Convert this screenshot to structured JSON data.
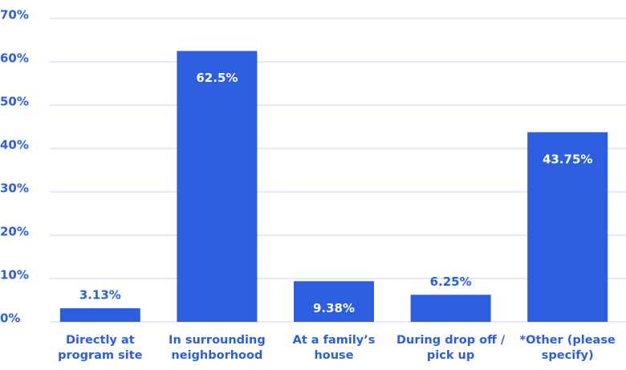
{
  "chart_data": {
    "type": "bar",
    "categories": [
      "Directly at program site",
      "In surrounding neighborhood",
      "At a family’s house",
      "During drop off / pick up",
      "*Other (please specify)"
    ],
    "values": [
      3.13,
      62.5,
      9.38,
      6.25,
      43.75
    ],
    "value_labels": [
      "3.13%",
      "62.5%",
      "9.38%",
      "6.25%",
      "43.75%"
    ],
    "color": "#2b5fe0",
    "ylim": [
      0,
      70
    ],
    "yticks": [
      {
        "value": 0,
        "label": "0%"
      },
      {
        "value": 10,
        "label": "10%"
      },
      {
        "value": 20,
        "label": "20%"
      },
      {
        "value": 30,
        "label": "30%"
      },
      {
        "value": 40,
        "label": "40%"
      },
      {
        "value": 50,
        "label": "50%"
      },
      {
        "value": 60,
        "label": "60%"
      },
      {
        "value": 70,
        "label": "70%"
      }
    ],
    "grid": true
  }
}
